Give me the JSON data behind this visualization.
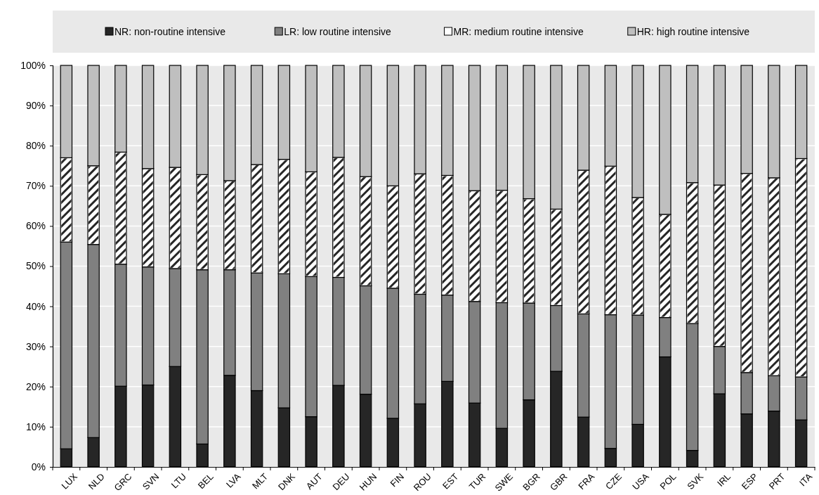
{
  "chart_data": {
    "type": "bar",
    "stacked": true,
    "categories": [
      "LUX",
      "NLD",
      "GRC",
      "SVN",
      "LTU",
      "BEL",
      "LVA",
      "MLT",
      "DNK",
      "AUT",
      "DEU",
      "HUN",
      "FIN",
      "ROU",
      "EST",
      "TUR",
      "SWE",
      "BGR",
      "GBR",
      "FRA",
      "CZE",
      "USA",
      "POL",
      "SVK",
      "IRL",
      "ESP",
      "PRT",
      "ITA"
    ],
    "series": [
      {
        "name": "NR: non-routine intensive",
        "color": "#262626",
        "values": [
          4.5,
          7.3,
          20.1,
          20.4,
          25,
          5.7,
          22.8,
          19,
          14.7,
          12.5,
          20.3,
          18.1,
          12.1,
          15.7,
          21.3,
          15.9,
          9.6,
          16.7,
          23.8,
          12.4,
          4.6,
          10.6,
          27.4,
          4.1,
          18.2,
          13.2,
          13.9,
          11.7
        ]
      },
      {
        "name": "LR: low routine intensive",
        "color": "#808080",
        "values": [
          51.5,
          48.1,
          30.4,
          29.4,
          24.4,
          43.4,
          26.3,
          29.3,
          33.4,
          34.9,
          26.9,
          27,
          32.4,
          27.3,
          21.5,
          25.3,
          31.3,
          24.1,
          16.4,
          25.7,
          33.3,
          27.2,
          9.8,
          31.6,
          11.8,
          10.3,
          8.8,
          10.7
        ]
      },
      {
        "name": "MR: medium routine intensive",
        "color": "#ffffff",
        "values": [
          21,
          19.6,
          27.9,
          24.5,
          25.2,
          23.7,
          22.2,
          27,
          28.5,
          26.1,
          29.9,
          27.2,
          25.5,
          30,
          29.8,
          27.6,
          28,
          26,
          24,
          35.8,
          37,
          29.3,
          25.7,
          35.1,
          40.2,
          49.6,
          49.3,
          54.4
        ]
      },
      {
        "name": "HR: high routine intensive",
        "color": "#bfbfbf",
        "values": [
          23,
          25,
          21.6,
          25.7,
          25.4,
          27.2,
          28.7,
          24.7,
          23.4,
          26.5,
          22.9,
          27.7,
          30,
          27,
          27.4,
          31.2,
          31.1,
          33.2,
          35.8,
          26.1,
          25.1,
          32.9,
          37.1,
          29.2,
          29.8,
          26.9,
          28,
          23.2
        ]
      }
    ],
    "ylim": [
      0,
      100
    ],
    "yticks": [
      {
        "value": 0,
        "label": "0%"
      },
      {
        "value": 10,
        "label": "10%"
      },
      {
        "value": 20,
        "label": "20%"
      },
      {
        "value": 30,
        "label": "30%"
      },
      {
        "value": 40,
        "label": "40%"
      },
      {
        "value": 50,
        "label": "50%"
      },
      {
        "value": 60,
        "label": "60%"
      },
      {
        "value": 70,
        "label": "70%"
      },
      {
        "value": 80,
        "label": "80%"
      },
      {
        "value": 90,
        "label": "90%"
      },
      {
        "value": 100,
        "label": "100%"
      }
    ],
    "grid": true,
    "legend": "top"
  }
}
